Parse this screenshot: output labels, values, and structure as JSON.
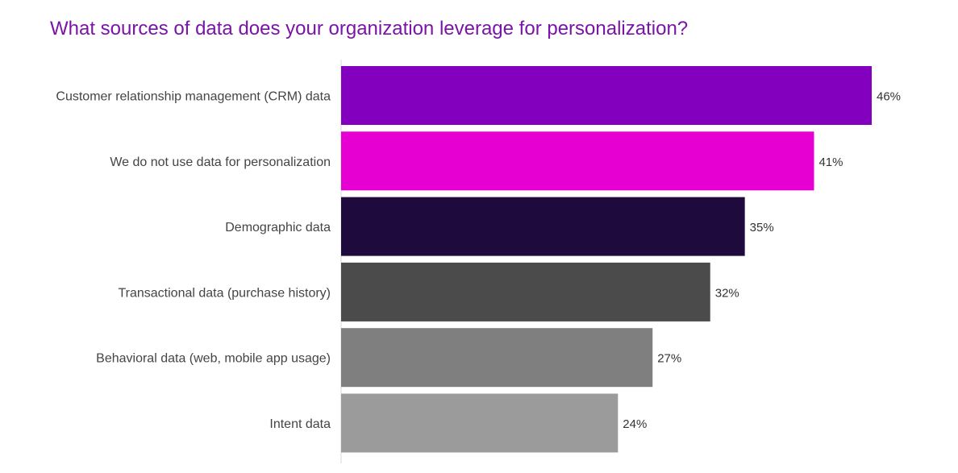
{
  "chart_data": {
    "type": "bar",
    "orientation": "horizontal",
    "title": "What sources of data does your organization leverage for personalization?",
    "xlabel": "",
    "ylabel": "",
    "xlim": [
      0,
      46
    ],
    "grid": false,
    "categories": [
      "Customer relationship management (CRM) data",
      "We do not use data for personalization",
      "Demographic data",
      "Transactional data (purchase history)",
      "Behavioral data (web, mobile app usage)",
      "Intent data"
    ],
    "values": [
      46,
      41,
      35,
      32,
      27,
      24
    ],
    "value_labels": [
      "46%",
      "41%",
      "35%",
      "32%",
      "27%",
      "24%"
    ],
    "colors": [
      "#8200be",
      "#e600d2",
      "#1e0a3c",
      "#4b4b4b",
      "#7f7f7f",
      "#9b9b9b"
    ]
  }
}
